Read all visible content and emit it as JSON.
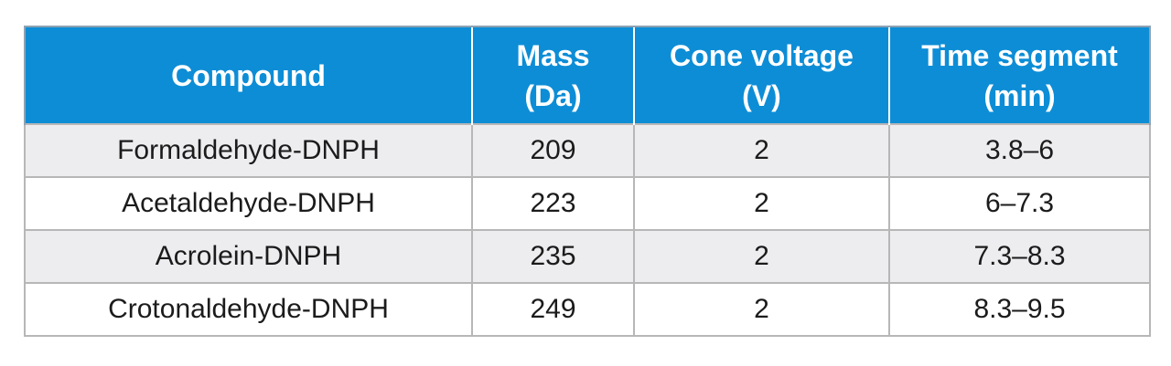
{
  "table": {
    "headers": [
      {
        "line1": "Compound",
        "line2": ""
      },
      {
        "line1": "Mass",
        "line2": "(Da)"
      },
      {
        "line1": "Cone voltage",
        "line2": "(V)"
      },
      {
        "line1": "Time segment",
        "line2": "(min)"
      }
    ],
    "rows": [
      [
        "Formaldehyde-DNPH",
        "209",
        "2",
        "3.8–6"
      ],
      [
        "Acetaldehyde-DNPH",
        "223",
        "2",
        "6–7.3"
      ],
      [
        "Acrolein-DNPH",
        "235",
        "2",
        "7.3–8.3"
      ],
      [
        "Crotonaldehyde-DNPH",
        "249",
        "2",
        "8.3–9.5"
      ]
    ],
    "colors": {
      "header_bg": "#0d8dd6",
      "header_text": "#ffffff",
      "alt_row_bg": "#ededf0",
      "border": "#b7b7b7"
    }
  }
}
